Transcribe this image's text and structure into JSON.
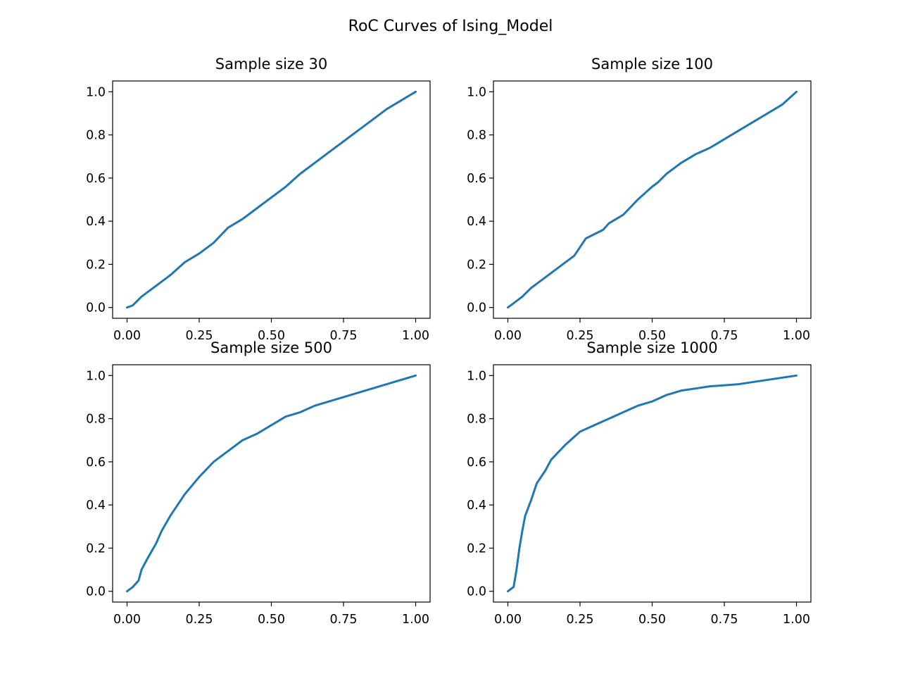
{
  "figure": {
    "suptitle": "RoC Curves of Ising_Model",
    "line_color": "#1f77b4"
  },
  "chart_data": [
    {
      "type": "line",
      "title": "Sample size 30",
      "xlabel": "",
      "ylabel": "",
      "xlim": [
        -0.05,
        1.05
      ],
      "ylim": [
        -0.05,
        1.05
      ],
      "xticks": [
        "0.00",
        "0.25",
        "0.50",
        "0.75",
        "1.00"
      ],
      "yticks": [
        "0.0",
        "0.2",
        "0.4",
        "0.6",
        "0.8",
        "1.0"
      ],
      "grid": false,
      "series": [
        {
          "x": [
            0,
            0.02,
            0.05,
            0.1,
            0.15,
            0.2,
            0.25,
            0.3,
            0.35,
            0.4,
            0.45,
            0.5,
            0.55,
            0.6,
            0.65,
            0.7,
            0.75,
            0.8,
            0.85,
            0.9,
            0.95,
            1
          ],
          "y": [
            0,
            0.01,
            0.05,
            0.1,
            0.15,
            0.21,
            0.25,
            0.3,
            0.37,
            0.41,
            0.46,
            0.51,
            0.56,
            0.62,
            0.67,
            0.72,
            0.77,
            0.82,
            0.87,
            0.92,
            0.96,
            1
          ]
        }
      ]
    },
    {
      "type": "line",
      "title": "Sample size 100",
      "xlabel": "",
      "ylabel": "",
      "xlim": [
        -0.05,
        1.05
      ],
      "ylim": [
        -0.05,
        1.05
      ],
      "xticks": [
        "0.00",
        "0.25",
        "0.50",
        "0.75",
        "1.00"
      ],
      "yticks": [
        "0.0",
        "0.2",
        "0.4",
        "0.6",
        "0.8",
        "1.0"
      ],
      "grid": false,
      "series": [
        {
          "x": [
            0,
            0.02,
            0.05,
            0.08,
            0.1,
            0.15,
            0.2,
            0.23,
            0.25,
            0.27,
            0.3,
            0.33,
            0.35,
            0.4,
            0.45,
            0.5,
            0.52,
            0.55,
            0.6,
            0.65,
            0.7,
            0.75,
            0.8,
            0.85,
            0.9,
            0.95,
            1
          ],
          "y": [
            0,
            0.02,
            0.05,
            0.09,
            0.11,
            0.16,
            0.21,
            0.24,
            0.28,
            0.32,
            0.34,
            0.36,
            0.39,
            0.43,
            0.5,
            0.56,
            0.58,
            0.62,
            0.67,
            0.71,
            0.74,
            0.78,
            0.82,
            0.86,
            0.9,
            0.94,
            1
          ]
        }
      ]
    },
    {
      "type": "line",
      "title": "Sample size 500",
      "xlabel": "",
      "ylabel": "",
      "xlim": [
        -0.05,
        1.05
      ],
      "ylim": [
        -0.05,
        1.05
      ],
      "xticks": [
        "0.00",
        "0.25",
        "0.50",
        "0.75",
        "1.00"
      ],
      "yticks": [
        "0.0",
        "0.2",
        "0.4",
        "0.6",
        "0.8",
        "1.0"
      ],
      "grid": false,
      "series": [
        {
          "x": [
            0,
            0.02,
            0.04,
            0.05,
            0.07,
            0.1,
            0.12,
            0.15,
            0.2,
            0.25,
            0.3,
            0.35,
            0.4,
            0.45,
            0.5,
            0.55,
            0.6,
            0.65,
            0.7,
            0.75,
            0.8,
            0.85,
            0.9,
            0.95,
            1
          ],
          "y": [
            0,
            0.02,
            0.05,
            0.1,
            0.15,
            0.22,
            0.28,
            0.35,
            0.45,
            0.53,
            0.6,
            0.65,
            0.7,
            0.73,
            0.77,
            0.81,
            0.83,
            0.86,
            0.88,
            0.9,
            0.92,
            0.94,
            0.96,
            0.98,
            1
          ]
        }
      ]
    },
    {
      "type": "line",
      "title": "Sample size 1000",
      "xlabel": "",
      "ylabel": "",
      "xlim": [
        -0.05,
        1.05
      ],
      "ylim": [
        -0.05,
        1.05
      ],
      "xticks": [
        "0.00",
        "0.25",
        "0.50",
        "0.75",
        "1.00"
      ],
      "yticks": [
        "0.0",
        "0.2",
        "0.4",
        "0.6",
        "0.8",
        "1.0"
      ],
      "grid": false,
      "series": [
        {
          "x": [
            0,
            0.02,
            0.03,
            0.04,
            0.05,
            0.06,
            0.08,
            0.1,
            0.13,
            0.15,
            0.2,
            0.25,
            0.3,
            0.35,
            0.4,
            0.45,
            0.5,
            0.55,
            0.6,
            0.65,
            0.7,
            0.8,
            0.9,
            1
          ],
          "y": [
            0,
            0.02,
            0.1,
            0.2,
            0.28,
            0.35,
            0.42,
            0.5,
            0.56,
            0.61,
            0.68,
            0.74,
            0.77,
            0.8,
            0.83,
            0.86,
            0.88,
            0.91,
            0.93,
            0.94,
            0.95,
            0.96,
            0.98,
            1
          ]
        }
      ]
    }
  ]
}
